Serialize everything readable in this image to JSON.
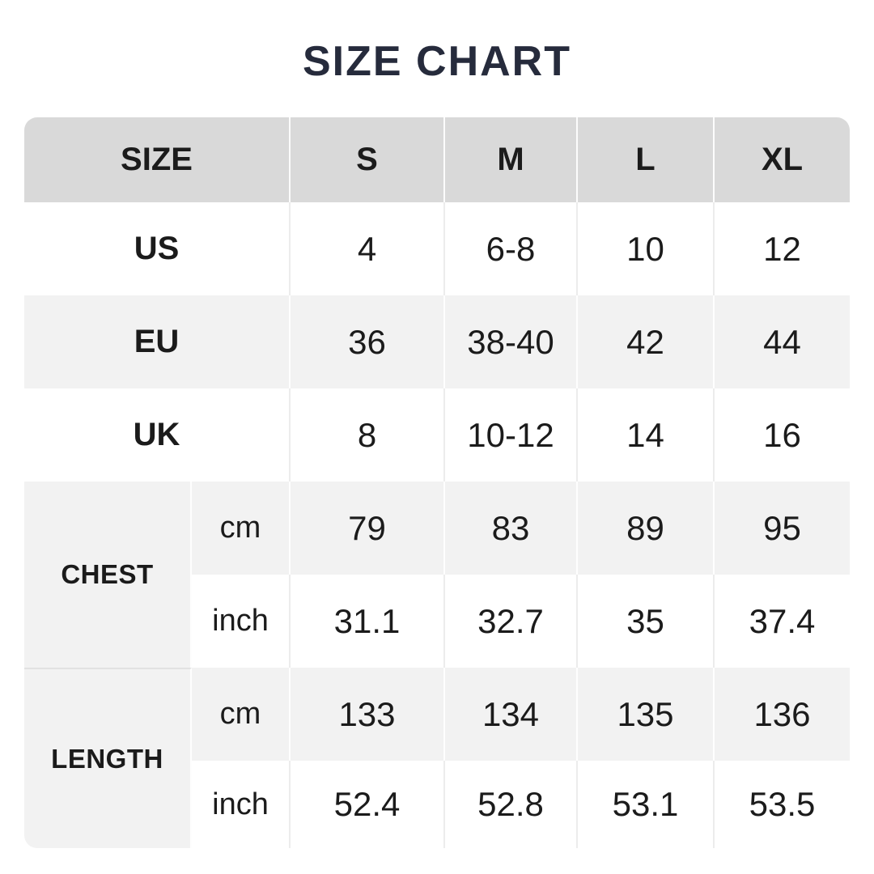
{
  "page": {
    "title": "SIZE CHART"
  },
  "colors": {
    "title_text": "#262b3c",
    "header_bg": "#d9d9d9",
    "alt_row_bg": "#f2f2f2",
    "body_text": "#1b1b1b",
    "page_bg": "#ffffff"
  },
  "chart_data": {
    "type": "table",
    "title": "SIZE CHART",
    "columns": [
      "SIZE",
      "S",
      "M",
      "L",
      "XL"
    ],
    "rows": [
      {
        "label": "US",
        "values": [
          "4",
          "6-8",
          "10",
          "12"
        ]
      },
      {
        "label": "EU",
        "values": [
          "36",
          "38-40",
          "42",
          "44"
        ]
      },
      {
        "label": "UK",
        "values": [
          "8",
          "10-12",
          "14",
          "16"
        ]
      },
      {
        "label": "CHEST",
        "unit": "cm",
        "values": [
          "79",
          "83",
          "89",
          "95"
        ]
      },
      {
        "label": "CHEST",
        "unit": "inch",
        "values": [
          "31.1",
          "32.7",
          "35",
          "37.4"
        ]
      },
      {
        "label": "LENGTH",
        "unit": "cm",
        "values": [
          "133",
          "134",
          "135",
          "136"
        ]
      },
      {
        "label": "LENGTH",
        "unit": "inch",
        "values": [
          "52.4",
          "52.8",
          "53.1",
          "53.5"
        ]
      }
    ],
    "layout": {
      "zebra_striping": true,
      "grouped_row_labels": [
        "CHEST",
        "LENGTH"
      ],
      "unit_subcolumn": [
        "cm",
        "inch"
      ]
    }
  }
}
